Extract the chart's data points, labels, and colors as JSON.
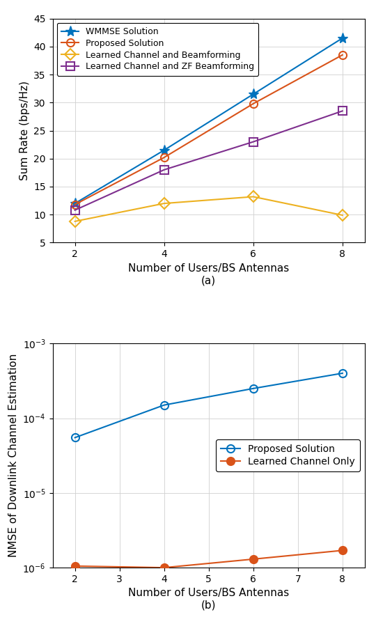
{
  "subplot_a": {
    "x": [
      2,
      4,
      6,
      8
    ],
    "wmmse": [
      12.0,
      21.5,
      31.5,
      41.5
    ],
    "proposed": [
      11.8,
      20.2,
      29.8,
      38.5
    ],
    "learned_ch_bf": [
      8.8,
      12.0,
      13.2,
      9.9
    ],
    "learned_ch_zf": [
      10.8,
      18.0,
      23.0,
      28.5
    ],
    "ylabel": "Sum Rate (bps/Hz)",
    "xlabel": "Number of Users/BS Antennas",
    "label_a": "(a)",
    "ylim": [
      5,
      45
    ],
    "yticks": [
      5,
      10,
      15,
      20,
      25,
      30,
      35,
      40,
      45
    ],
    "xticks": [
      2,
      4,
      6,
      8
    ],
    "colors": {
      "wmmse": "#0072BD",
      "proposed": "#D95319",
      "learned_ch_bf": "#EDB120",
      "learned_ch_zf": "#7E2F8E"
    },
    "legend": {
      "wmmse": "WMMSE Solution",
      "proposed": "Proposed Solution",
      "learned_ch_bf": "Learned Channel and Beamforming",
      "learned_ch_zf": "Learned Channel and ZF Beamforming"
    }
  },
  "subplot_b": {
    "x": [
      2,
      4,
      6,
      8
    ],
    "proposed": [
      5.5e-05,
      0.00015,
      0.00025,
      0.0004
    ],
    "learned_ch": [
      1.05e-06,
      1e-06,
      1.3e-06,
      1.7e-06
    ],
    "ylabel": "NMSE of Downlink Channel Estimation",
    "xlabel": "Number of Users/BS Antennas",
    "label_b": "(b)",
    "ylim": [
      1e-06,
      0.001
    ],
    "xticks": [
      2,
      3,
      4,
      5,
      6,
      7,
      8
    ],
    "colors": {
      "proposed": "#0072BD",
      "learned_ch": "#D95319"
    },
    "legend": {
      "proposed": "Proposed Solution",
      "learned_ch": "Learned Channel Only"
    }
  },
  "figure_bgcolor": "#FFFFFF"
}
